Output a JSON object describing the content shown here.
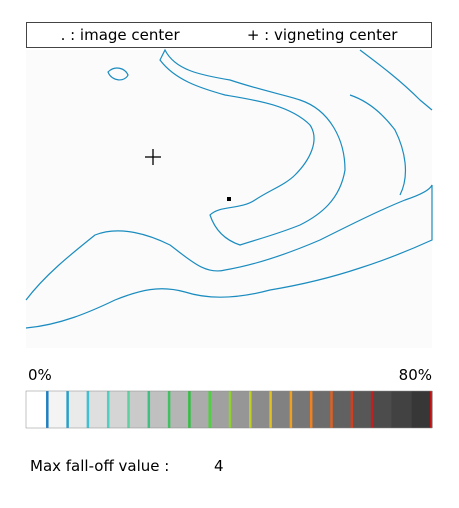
{
  "legend": {
    "image_center": ". : image center",
    "vignetting_center": "+ : vigneting center"
  },
  "colorbar": {
    "min_label": "0%",
    "max_label": "80%"
  },
  "max_falloff": {
    "label": "Max fall-off value :",
    "value": "4"
  }
}
